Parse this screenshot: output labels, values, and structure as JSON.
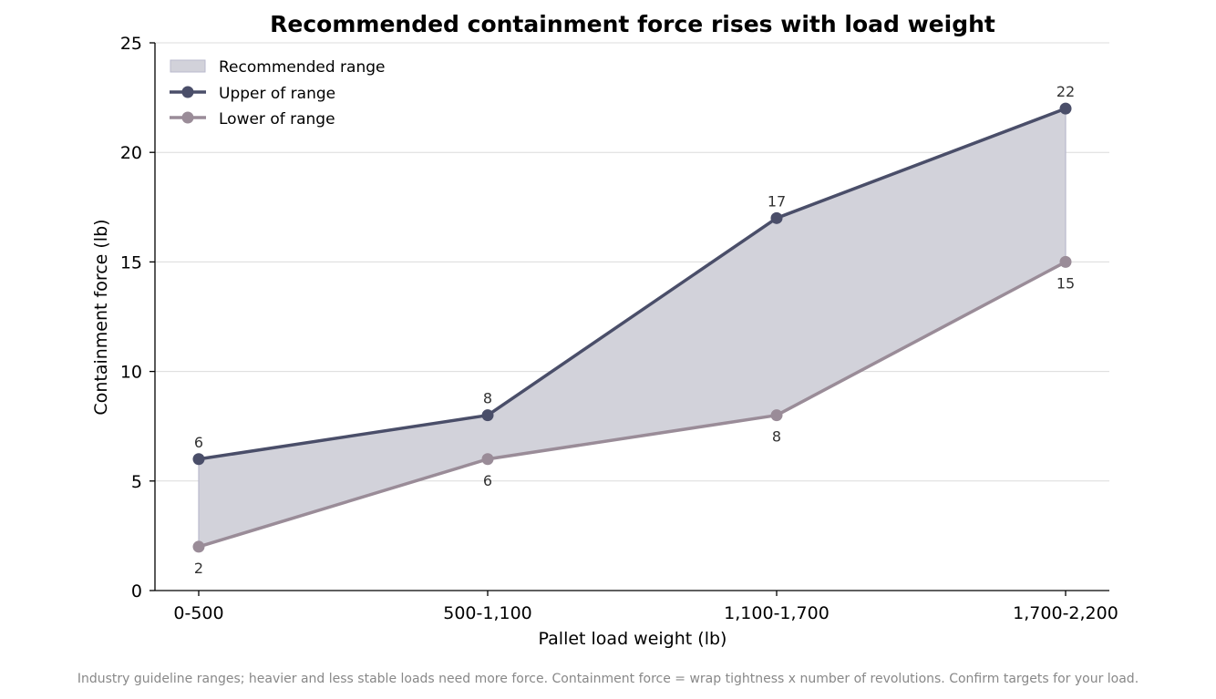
{
  "chart_data": {
    "type": "area",
    "title": "Recommended containment force rises with load weight",
    "xlabel": "Pallet load weight (lb)",
    "ylabel": "Containment force (lb)",
    "categories": [
      "0-500",
      "500-1,100",
      "1,100-1,700",
      "1,700-2,200"
    ],
    "ylim": [
      0,
      25
    ],
    "yticks": [
      "0",
      "5",
      "10",
      "15",
      "20",
      "25"
    ],
    "grid": "horizontal",
    "legend_position": "top-left",
    "series": [
      {
        "name": "Upper of range",
        "values": [
          6,
          8,
          17,
          22
        ],
        "color": "#4a4e69",
        "labels": [
          "6",
          "8",
          "17",
          "22"
        ]
      },
      {
        "name": "Lower of range",
        "values": [
          2,
          6,
          8,
          15
        ],
        "color": "#9a8c98",
        "labels": [
          "2",
          "6",
          "8",
          "15"
        ]
      }
    ],
    "band": {
      "name": "Recommended range",
      "fill": "#d2d2da",
      "edge": "#b9b9cc"
    },
    "footnote": "Industry guideline ranges; heavier and less stable loads need more force. Containment force = wrap tightness x number of revolutions. Confirm targets for your load."
  }
}
